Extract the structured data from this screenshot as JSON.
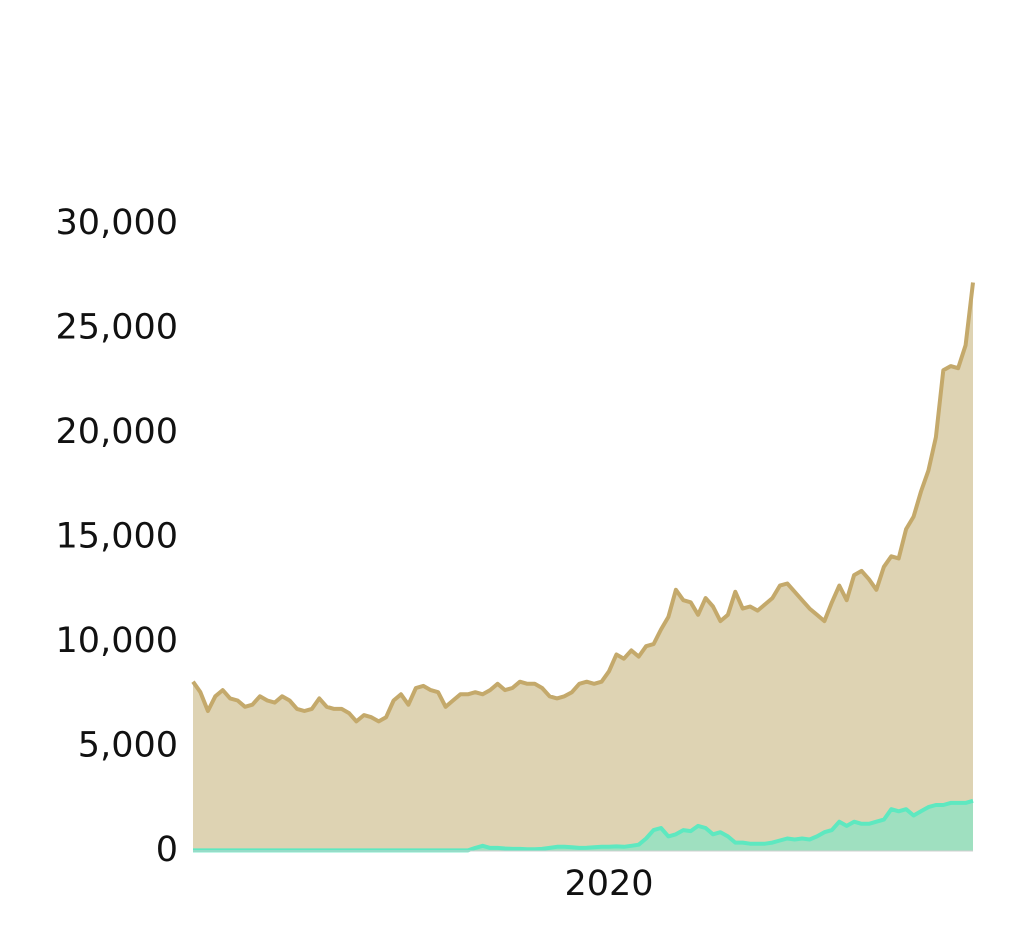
{
  "chart_data": {
    "type": "area",
    "categories": [
      null,
      null,
      null,
      null,
      null,
      null,
      null,
      null,
      null,
      null,
      null,
      null,
      null,
      null,
      null,
      null,
      null,
      null,
      null,
      null,
      null,
      null,
      null,
      null,
      null,
      null,
      null,
      null,
      null,
      null,
      null,
      null,
      null,
      null,
      null,
      null,
      null,
      null,
      null,
      null,
      null,
      null,
      null,
      null,
      null,
      null,
      null,
      null,
      null,
      null,
      null,
      null,
      null,
      null,
      null,
      null,
      "2020",
      null,
      null,
      null,
      null,
      null,
      null,
      null,
      null,
      null,
      null,
      null,
      null,
      null,
      null,
      null,
      null,
      null,
      null,
      null,
      null,
      null,
      null,
      null,
      null,
      null,
      null,
      null,
      null,
      null,
      null,
      null,
      null,
      null,
      null,
      null,
      null,
      null,
      null,
      null,
      null,
      null,
      null,
      null,
      null,
      null,
      null,
      null,
      null,
      null
    ],
    "series": [
      {
        "color": "#c4a96b",
        "fill": "#ded3b3",
        "values": [
          8100,
          7600,
          6700,
          7400,
          7700,
          7300,
          7200,
          6900,
          7000,
          7400,
          7200,
          7100,
          7400,
          7200,
          6800,
          6700,
          6800,
          7300,
          6900,
          6800,
          6800,
          6600,
          6200,
          6500,
          6400,
          6200,
          6400,
          7200,
          7500,
          7000,
          7800,
          7900,
          7700,
          7600,
          6900,
          7200,
          7500,
          7500,
          7600,
          7500,
          7700,
          8000,
          7700,
          7800,
          8100,
          8000,
          8000,
          7800,
          7400,
          7300,
          7400,
          7600,
          8000,
          8100,
          8000,
          8100,
          8600,
          9400,
          9200,
          9600,
          9300,
          9800,
          9900,
          10600,
          11200,
          12500,
          12000,
          11900,
          11300,
          12100,
          11700,
          11000,
          11300,
          12400,
          11600,
          11700,
          11500,
          11800,
          12100,
          12700,
          12800,
          12400,
          12000,
          11600,
          11300,
          11000,
          11900,
          12700,
          12000,
          13200,
          13400,
          13000,
          12500,
          13600,
          14100,
          14000,
          15400,
          16000,
          17200,
          18200,
          19800,
          23000,
          23200,
          23100,
          24200,
          27200
        ]
      },
      {
        "color": "#5ee8c0",
        "fill": "#9fe0c0",
        "values": [
          30,
          30,
          30,
          30,
          30,
          30,
          30,
          30,
          30,
          30,
          30,
          30,
          30,
          30,
          30,
          30,
          30,
          30,
          30,
          30,
          30,
          30,
          30,
          30,
          30,
          30,
          30,
          30,
          30,
          30,
          30,
          30,
          30,
          30,
          30,
          30,
          30,
          30,
          150,
          250,
          150,
          150,
          120,
          100,
          100,
          80,
          80,
          100,
          150,
          200,
          200,
          180,
          150,
          160,
          180,
          200,
          200,
          220,
          200,
          250,
          300,
          600,
          1000,
          1100,
          700,
          800,
          1000,
          950,
          1200,
          1100,
          800,
          900,
          700,
          400,
          400,
          350,
          350,
          350,
          400,
          500,
          600,
          550,
          600,
          550,
          700,
          900,
          1000,
          1400,
          1200,
          1400,
          1300,
          1300,
          1400,
          1500,
          2000,
          1900,
          2000,
          1700,
          1900,
          2100,
          2200,
          2200,
          2300,
          2300,
          2300,
          2400
        ]
      }
    ],
    "ylim": [
      0,
      30000
    ],
    "yticks": [
      0,
      {
        "value": 5000,
        "label": "5,000"
      },
      {
        "value": 10000,
        "label": "10,000"
      },
      {
        "value": 15000,
        "label": "15,000"
      },
      {
        "value": 20000,
        "label": "20,000"
      },
      {
        "value": 25000,
        "label": "25,000"
      },
      {
        "value": 30000,
        "label": "30,000"
      }
    ]
  }
}
